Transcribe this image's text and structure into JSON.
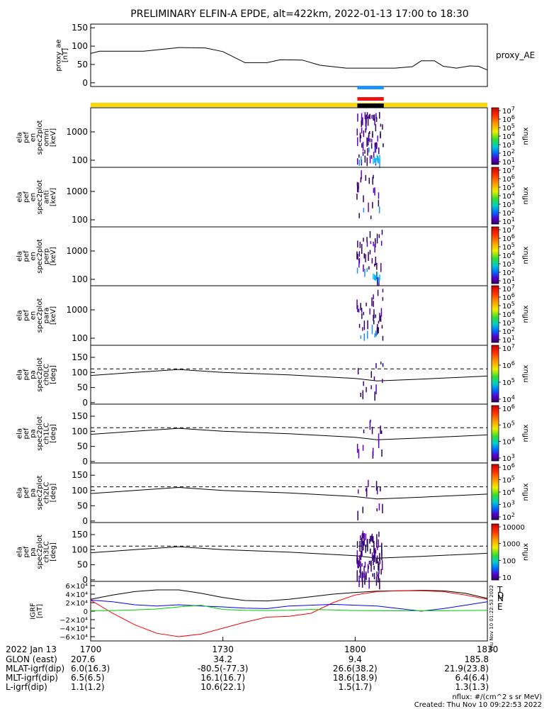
{
  "title": "PRELIMINARY ELFIN-A EPDE, alt=422km, 2022-01-13 17:00 to 18:30",
  "chart_data": [
    {
      "type": "line",
      "panel": "proxy_ae",
      "ylabel": [
        "proxy_ae",
        "[nT]"
      ],
      "yticks": [
        "150",
        "100",
        "50",
        "0"
      ],
      "ylim": [
        -10,
        160
      ],
      "series_label": "proxy_AE",
      "x_minutes": [
        0,
        2,
        12,
        20,
        26,
        30,
        35,
        40,
        43,
        48,
        52,
        58,
        64,
        69,
        73,
        75,
        78,
        80,
        83,
        86,
        88,
        90
      ],
      "values": [
        80,
        86,
        86,
        96,
        95,
        85,
        55,
        55,
        63,
        62,
        48,
        40,
        40,
        40,
        44,
        60,
        60,
        45,
        40,
        46,
        45,
        35
      ]
    },
    {
      "type": "heatmap",
      "panel": "omni",
      "ylabel": [
        "ela",
        "pef",
        "en",
        "spec2plot",
        "omni",
        "[keV]"
      ],
      "yticks": [
        "1000",
        "100"
      ],
      "colorbar_label": "nflux",
      "colorbar_ticks": [
        "10^7",
        "10^6",
        "10^5",
        "10^4",
        "10^3",
        "10^2",
        "10^1"
      ],
      "yscale": "log"
    },
    {
      "type": "heatmap",
      "panel": "anti",
      "ylabel": [
        "ela",
        "pef",
        "en",
        "spec2plot",
        "anti",
        "[keV]"
      ],
      "yticks": [
        "1000",
        "100"
      ],
      "colorbar_label": "nflux",
      "colorbar_ticks": [
        "10^7",
        "10^6",
        "10^5",
        "10^4",
        "10^3",
        "10^2",
        "10^1"
      ],
      "yscale": "log"
    },
    {
      "type": "heatmap",
      "panel": "perp",
      "ylabel": [
        "ela",
        "pef",
        "en",
        "spec2plot",
        "perp",
        "[keV]"
      ],
      "yticks": [
        "1000",
        "100"
      ],
      "colorbar_label": "nflux",
      "colorbar_ticks": [
        "10^7",
        "10^6",
        "10^5",
        "10^4",
        "10^3",
        "10^2",
        "10^1"
      ],
      "yscale": "log"
    },
    {
      "type": "heatmap",
      "panel": "para",
      "ylabel": [
        "ela",
        "pef",
        "en",
        "spec2plot",
        "para",
        "[keV]"
      ],
      "yticks": [
        "1000",
        "100"
      ],
      "colorbar_label": "nflux",
      "colorbar_ticks": [
        "10^7",
        "10^6",
        "10^5",
        "10^4",
        "10^3",
        "10^2",
        "10^1"
      ],
      "yscale": "log"
    },
    {
      "type": "heatmap",
      "panel": "ch0LC",
      "ylabel": [
        "ela",
        "pef",
        "pa",
        "spec2plot",
        "ch0LC",
        "[deg]"
      ],
      "yticks": [
        "150",
        "100",
        "50",
        "0"
      ],
      "colorbar_label": "nflux",
      "colorbar_ticks": [
        "10^7",
        "10^6",
        "10^5",
        "10^4"
      ],
      "ylim": [
        -5,
        190
      ]
    },
    {
      "type": "heatmap",
      "panel": "ch1LC",
      "ylabel": [
        "ela",
        "pef",
        "pa",
        "spec2plot",
        "ch1LC",
        "[deg]"
      ],
      "yticks": [
        "150",
        "100",
        "50",
        "0"
      ],
      "colorbar_label": "nflux",
      "colorbar_ticks": [
        "10^6",
        "10^5",
        "10^4",
        "10^3"
      ],
      "ylim": [
        -5,
        190
      ]
    },
    {
      "type": "heatmap",
      "panel": "ch2LC",
      "ylabel": [
        "ela",
        "pef",
        "pa",
        "spec2plot",
        "ch2LC",
        "[deg]"
      ],
      "yticks": [
        "150",
        "100",
        "50",
        "0"
      ],
      "colorbar_label": "nflux",
      "colorbar_ticks": [
        "10^6",
        "10^5",
        "10^4",
        "10^3",
        "10^2"
      ],
      "ylim": [
        -5,
        190
      ]
    },
    {
      "type": "heatmap",
      "panel": "ch3LC",
      "ylabel": [
        "ela",
        "pef",
        "pa",
        "spec2plot",
        "ch3LC",
        "[deg]"
      ],
      "yticks": [
        "150",
        "100",
        "50",
        "0"
      ],
      "colorbar_label": "nflux",
      "colorbar_ticks": [
        "10000",
        "1000",
        "100",
        "10"
      ],
      "ylim": [
        -5,
        190
      ]
    },
    {
      "type": "line",
      "panel": "IGRF",
      "ylabel": [
        "IGRF",
        "[nT]"
      ],
      "yticks": [
        "6×10⁴",
        "4×10⁴",
        "2×10⁴",
        "0",
        "−2×10⁴",
        "−4×10⁴",
        "−6×10⁴"
      ],
      "ylim": [
        -70000,
        70000
      ],
      "x_minutes": [
        0,
        5,
        10,
        15,
        20,
        25,
        30,
        35,
        40,
        45,
        50,
        55,
        60,
        65,
        70,
        75,
        80,
        85,
        90
      ],
      "series": [
        {
          "name": "T",
          "color": "#000000",
          "values": [
            28000,
            38000,
            46000,
            50000,
            50000,
            42000,
            32000,
            25000,
            24000,
            28000,
            34000,
            40000,
            44000,
            47000,
            48000,
            49000,
            48000,
            42000,
            30000
          ]
        },
        {
          "name": "N",
          "color": "#ff0000",
          "values": [
            26000,
            -5000,
            -32000,
            -52000,
            -60000,
            -54000,
            -40000,
            -26000,
            -14000,
            -12000,
            -5000,
            20000,
            38000,
            46000,
            48000,
            48000,
            46000,
            38000,
            28000
          ]
        },
        {
          "name": "D",
          "color": "#0000ff",
          "values": [
            26000,
            22000,
            15000,
            12000,
            15000,
            12000,
            10000,
            7000,
            6000,
            12000,
            14000,
            16000,
            14000,
            12000,
            6000,
            0,
            6000,
            14000,
            22000
          ]
        },
        {
          "name": "E",
          "color": "#00cc00",
          "values": [
            1000,
            1500,
            3000,
            5000,
            10000,
            14000,
            4000,
            2000,
            1500,
            2000,
            4000,
            3000,
            1500,
            1000,
            800,
            800,
            1000,
            1500,
            2000
          ]
        }
      ]
    }
  ],
  "time_axis": {
    "date_label": "2022 Jan 13",
    "ticks": [
      "1700",
      "1730",
      "1800",
      "1830"
    ],
    "rows": [
      {
        "label": "GLON (east)",
        "values": [
          "207.6",
          "34.2",
          "9.4",
          "185.8"
        ]
      },
      {
        "label": "MLAT-igrf(dip)",
        "values": [
          "6.0(16.3)",
          "-80.5(-77.3)",
          "26.6(38.2)",
          "21.9(23.8)"
        ]
      },
      {
        "label": "MLT-igrf(dip)",
        "values": [
          "6.5(6.5)",
          "16.1(16.7)",
          "18.6(18.9)",
          "6.4(6.4)"
        ]
      },
      {
        "label": "L-igrf(dip)",
        "values": [
          "1.1(1.2)",
          "10.6(22.1)",
          "1.5(1.7)",
          "1.3(1.3)"
        ]
      }
    ]
  },
  "footer": {
    "units": "nflux: #/(cm^2 s sr MeV)",
    "created": "Created: Thu Nov 10 09:22:53 2022",
    "vertical_stamp": "Thu Nov 10 01:22:53 2022"
  },
  "colors": {
    "status_yellow": "#ffd700",
    "status_blue": "#1e90ff",
    "status_red": "#ee1111",
    "status_black": "#000000"
  }
}
